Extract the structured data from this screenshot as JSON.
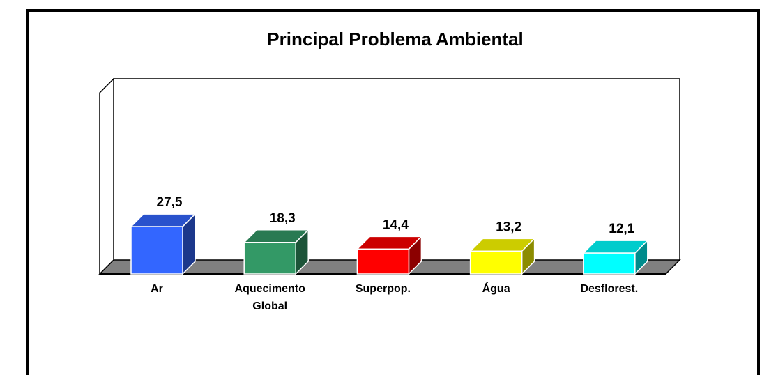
{
  "chart_data": {
    "type": "bar3d",
    "title": "Principal Problema Ambiental",
    "categories": [
      "Ar",
      "Aquecimento Global",
      "Superpop.",
      "Água",
      "Desflorest."
    ],
    "values": [
      27.5,
      18.3,
      14.4,
      13.2,
      12.1
    ],
    "value_labels": [
      "27,5",
      "18,3",
      "14,4",
      "13,2",
      "12,1"
    ],
    "colors": [
      "#3366ff",
      "#339966",
      "#ff0000",
      "#ffff00",
      "#00ffff"
    ]
  }
}
